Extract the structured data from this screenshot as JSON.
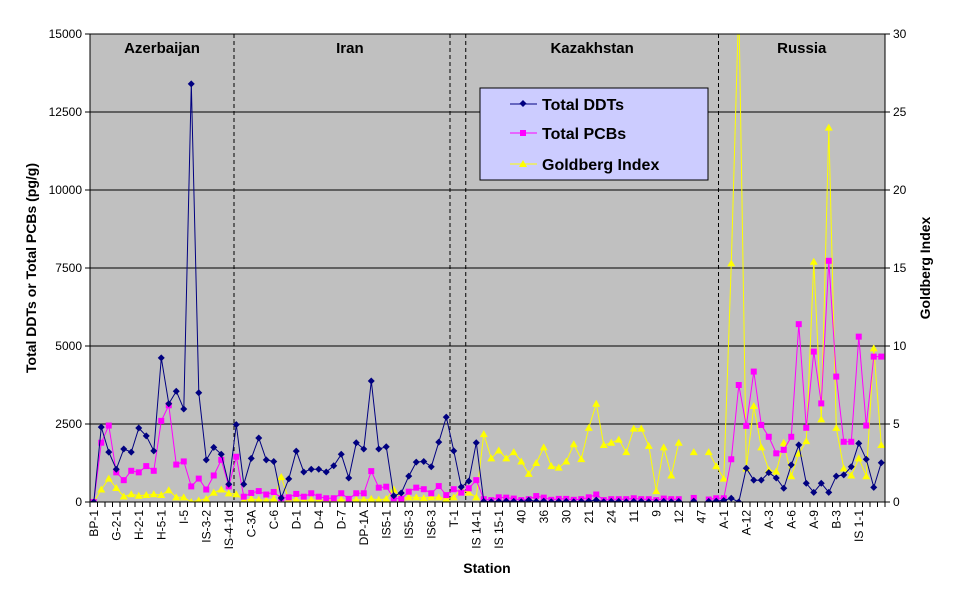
{
  "chart_data": {
    "type": "line",
    "xlabel": "Station",
    "ylabel": "Total DDTs or Total PCBs (pg/g)",
    "y2label": "Goldberg Index",
    "ylim": [
      0,
      15000
    ],
    "y2lim": [
      0,
      30
    ],
    "yticks": [
      "0",
      "2500",
      "5000",
      "7500",
      "10000",
      "12500",
      "15000"
    ],
    "y2ticks": [
      "0",
      "5",
      "10",
      "15",
      "20",
      "25",
      "30"
    ],
    "grid": "horizontal",
    "legend_placement": "top-center",
    "colors": {
      "plot_bg": "#C0C0C0",
      "legend_bg": "#CCCCFF",
      "ddt": "#000080",
      "pcb": "#FF00FF",
      "goldberg": "#FFFF00"
    },
    "regions": [
      "Azerbaijan",
      "Iran",
      "Kazakhstan",
      "Russia"
    ],
    "tick_label_every": 3,
    "tick_labels": [
      "BP-1",
      "G-2-1",
      "H-2-1",
      "H-5-1",
      "I-5",
      "IS-3-2",
      "IS-4-1d",
      "C-3A",
      "C-6",
      "D-1",
      "D-4",
      "D-7",
      "DP-1A",
      "IS5-1",
      "IS5-3",
      "IS6-3",
      "T-1",
      "IS 14-1",
      "IS 15-1",
      "40",
      "36",
      "30",
      "21",
      "24",
      "11",
      "9",
      "12",
      "47",
      "A-1",
      "A-12",
      "A-3",
      "A-6",
      "A-9",
      "B-3",
      "IS 1-1"
    ],
    "series": [
      {
        "name": "Total DDTs",
        "axis": "left",
        "marker": "diamond",
        "values": [
          0,
          2400,
          1600,
          1050,
          1700,
          1600,
          2370,
          2120,
          1640,
          4620,
          3150,
          3550,
          2980,
          13400,
          3500,
          1350,
          1750,
          1530,
          570,
          2480,
          570,
          1400,
          2050,
          1350,
          1300,
          130,
          740,
          1630,
          960,
          1050,
          1050,
          960,
          1160,
          1530,
          770,
          1900,
          1700,
          3880,
          1700,
          1770,
          200,
          290,
          830,
          1280,
          1300,
          1130,
          1920,
          2720,
          1640,
          480,
          670,
          1900,
          20,
          10,
          20,
          30,
          20,
          10,
          60,
          20,
          30,
          10,
          20,
          20,
          10,
          20,
          30,
          60,
          10,
          20,
          20,
          10,
          20,
          20,
          10,
          10,
          20,
          10,
          20,
          null,
          30,
          null,
          20,
          30,
          50,
          120,
          0,
          1080,
          700,
          700,
          940,
          770,
          440,
          1190,
          1830,
          600,
          310,
          600,
          310,
          830,
          870,
          1130,
          1880,
          1370,
          470,
          1260
        ]
      },
      {
        "name": "Total PCBs",
        "axis": "left",
        "marker": "square",
        "values": [
          0,
          1900,
          2450,
          950,
          700,
          1000,
          950,
          1150,
          1000,
          2600,
          3100,
          1200,
          1300,
          500,
          750,
          400,
          850,
          1350,
          500,
          1450,
          170,
          290,
          350,
          240,
          320,
          120,
          150,
          260,
          170,
          280,
          170,
          120,
          120,
          280,
          100,
          280,
          280,
          990,
          460,
          490,
          120,
          100,
          330,
          460,
          410,
          280,
          510,
          220,
          410,
          300,
          440,
          700,
          90,
          60,
          150,
          140,
          110,
          60,
          90,
          190,
          140,
          70,
          100,
          100,
          70,
          90,
          150,
          240,
          60,
          90,
          90,
          90,
          120,
          90,
          90,
          60,
          110,
          90,
          90,
          null,
          130,
          null,
          80,
          120,
          120,
          1370,
          3750,
          2440,
          4180,
          2470,
          2090,
          1560,
          1670,
          2090,
          5700,
          2380,
          4820,
          3160,
          7730,
          4020,
          1930,
          1930,
          5300,
          2450,
          4660,
          4660
        ]
      },
      {
        "name": "Goldberg Index",
        "axis": "right",
        "marker": "triangle",
        "values": [
          0,
          0.8,
          1.5,
          0.9,
          0.35,
          0.5,
          0.4,
          0.45,
          0.5,
          0.45,
          0.75,
          0.3,
          0.3,
          0,
          0.1,
          0.2,
          0.6,
          0.8,
          0.55,
          0.5,
          0.1,
          0.2,
          0.15,
          0.1,
          0.2,
          1.6,
          0.15,
          0.15,
          0.1,
          0.15,
          0.1,
          0.15,
          0.1,
          0.15,
          0.1,
          0.15,
          0.15,
          0.2,
          0.15,
          0.2,
          0.8,
          0.2,
          0.3,
          0.3,
          0.25,
          0.3,
          0.3,
          0.2,
          0.3,
          0.8,
          0.6,
          0.3,
          4.35,
          2.8,
          3.3,
          2.8,
          3.2,
          2.6,
          1.8,
          2.5,
          3.5,
          2.3,
          2.2,
          2.6,
          3.7,
          2.75,
          4.75,
          6.3,
          3.65,
          3.8,
          4.0,
          3.2,
          4.7,
          4.7,
          3.6,
          0.7,
          3.5,
          1.7,
          3.8,
          null,
          3.2,
          null,
          3.2,
          2.3,
          1.5,
          15.3,
          32,
          2.15,
          6.15,
          3.5,
          2.05,
          1.95,
          3.8,
          1.65,
          3.1,
          3.9,
          15.4,
          5.3,
          24,
          4.75,
          2.15,
          1.7,
          2.8,
          1.65,
          9.85,
          3.65
        ]
      }
    ]
  }
}
